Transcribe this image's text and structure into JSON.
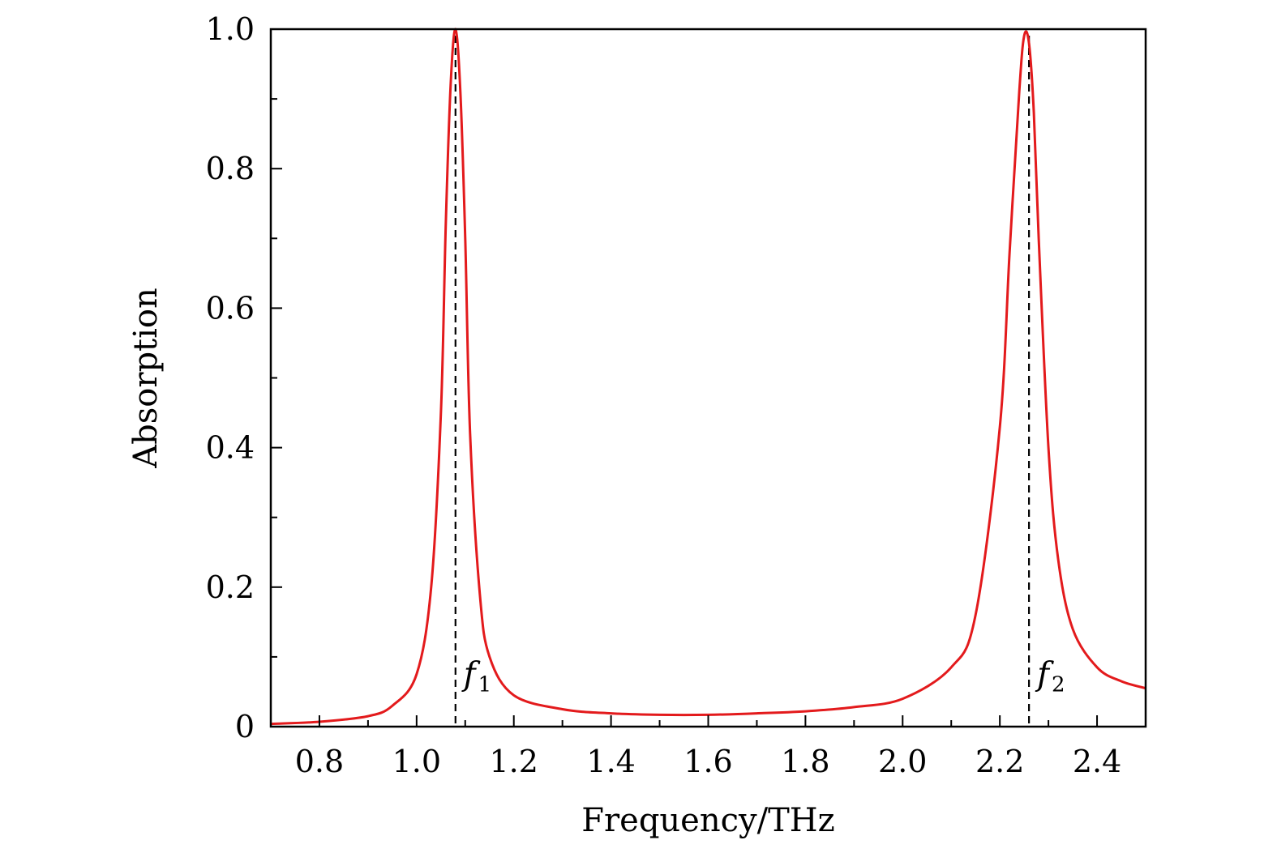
{
  "chart_data": {
    "type": "line",
    "xlabel": "Frequency/THz",
    "ylabel": "Absorption",
    "xlim": [
      0.7,
      2.5
    ],
    "ylim": [
      0,
      1.0
    ],
    "x_ticks": [
      0.8,
      1.0,
      1.2,
      1.4,
      1.6,
      1.8,
      2.0,
      2.2,
      2.4
    ],
    "x_tick_labels": [
      "0.8",
      "1.0",
      "1.2",
      "1.4",
      "1.6",
      "1.8",
      "2.0",
      "2.2",
      "2.4"
    ],
    "y_ticks": [
      0,
      0.2,
      0.4,
      0.6,
      0.8,
      1.0
    ],
    "y_tick_labels": [
      "0",
      "0.2",
      "0.4",
      "0.6",
      "0.8",
      "1.0"
    ],
    "grid": false,
    "line_color": "#e31a1c",
    "series": [
      {
        "x": [
          0.7,
          0.8,
          0.9,
          0.95,
          1.0,
          1.03,
          1.05,
          1.06,
          1.07,
          1.08,
          1.09,
          1.1,
          1.11,
          1.13,
          1.15,
          1.2,
          1.3,
          1.4,
          1.5,
          1.6,
          1.7,
          1.8,
          1.9,
          2.0,
          2.1,
          2.15,
          2.2,
          2.22,
          2.24,
          2.25,
          2.26,
          2.27,
          2.28,
          2.3,
          2.32,
          2.35,
          2.4,
          2.45,
          2.5
        ],
        "y": [
          0.004,
          0.007,
          0.015,
          0.03,
          0.075,
          0.2,
          0.45,
          0.72,
          0.92,
          1.0,
          0.91,
          0.7,
          0.42,
          0.19,
          0.1,
          0.045,
          0.025,
          0.019,
          0.017,
          0.017,
          0.019,
          0.022,
          0.028,
          0.04,
          0.085,
          0.16,
          0.43,
          0.68,
          0.91,
          0.99,
          0.98,
          0.88,
          0.7,
          0.4,
          0.24,
          0.14,
          0.085,
          0.065,
          0.055
        ]
      }
    ],
    "markers": [
      {
        "x": 1.08,
        "label": "f",
        "subscript": "1"
      },
      {
        "x": 2.26,
        "label": "f",
        "subscript": "2"
      }
    ]
  }
}
